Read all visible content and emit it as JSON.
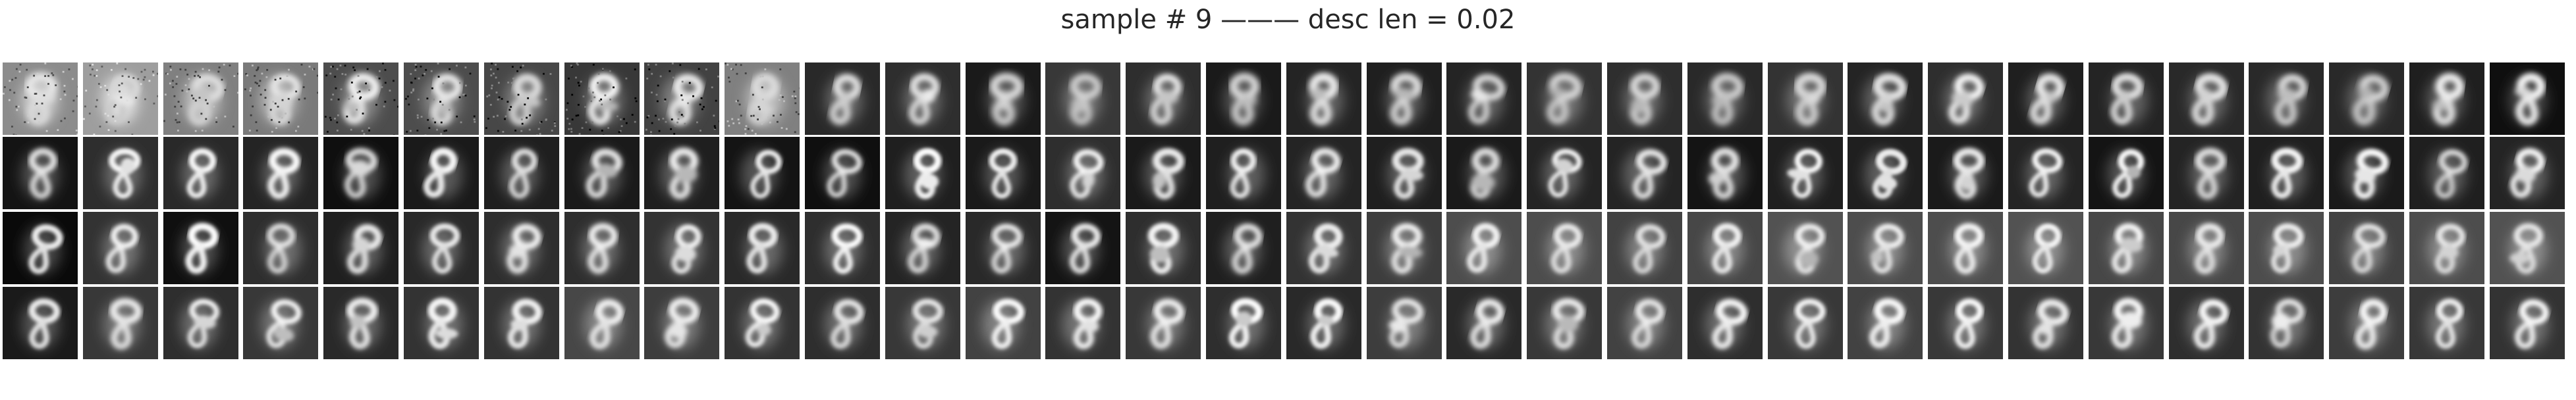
{
  "figure": {
    "title": "sample # 9 ——— desc len = 0.02"
  },
  "grid": {
    "rows": 4,
    "columns": 32,
    "background_levels": [
      [
        0.55,
        0.62,
        0.5,
        0.48,
        0.3,
        0.3,
        0.28,
        0.22,
        0.26,
        0.5,
        0.16,
        0.18,
        0.1,
        0.22,
        0.18,
        0.1,
        0.14,
        0.12,
        0.14,
        0.2,
        0.18,
        0.16,
        0.2,
        0.14,
        0.18,
        0.12,
        0.14,
        0.16,
        0.16,
        0.16,
        0.12,
        0.06
      ],
      [
        0.08,
        0.18,
        0.16,
        0.14,
        0.06,
        0.1,
        0.12,
        0.1,
        0.12,
        0.08,
        0.06,
        0.12,
        0.1,
        0.18,
        0.1,
        0.12,
        0.14,
        0.12,
        0.1,
        0.14,
        0.14,
        0.08,
        0.12,
        0.12,
        0.1,
        0.14,
        0.08,
        0.14,
        0.12,
        0.1,
        0.12,
        0.14
      ],
      [
        0.04,
        0.2,
        0.06,
        0.18,
        0.12,
        0.16,
        0.18,
        0.18,
        0.2,
        0.16,
        0.18,
        0.14,
        0.16,
        0.08,
        0.18,
        0.12,
        0.2,
        0.24,
        0.3,
        0.3,
        0.26,
        0.28,
        0.32,
        0.3,
        0.3,
        0.32,
        0.28,
        0.28,
        0.3,
        0.26,
        0.3,
        0.32
      ],
      [
        0.1,
        0.22,
        0.18,
        0.22,
        0.16,
        0.2,
        0.2,
        0.28,
        0.24,
        0.2,
        0.18,
        0.22,
        0.26,
        0.2,
        0.22,
        0.18,
        0.16,
        0.24,
        0.16,
        0.22,
        0.26,
        0.18,
        0.22,
        0.26,
        0.22,
        0.2,
        0.22,
        0.18,
        0.2,
        0.24,
        0.22,
        0.2
      ]
    ]
  }
}
